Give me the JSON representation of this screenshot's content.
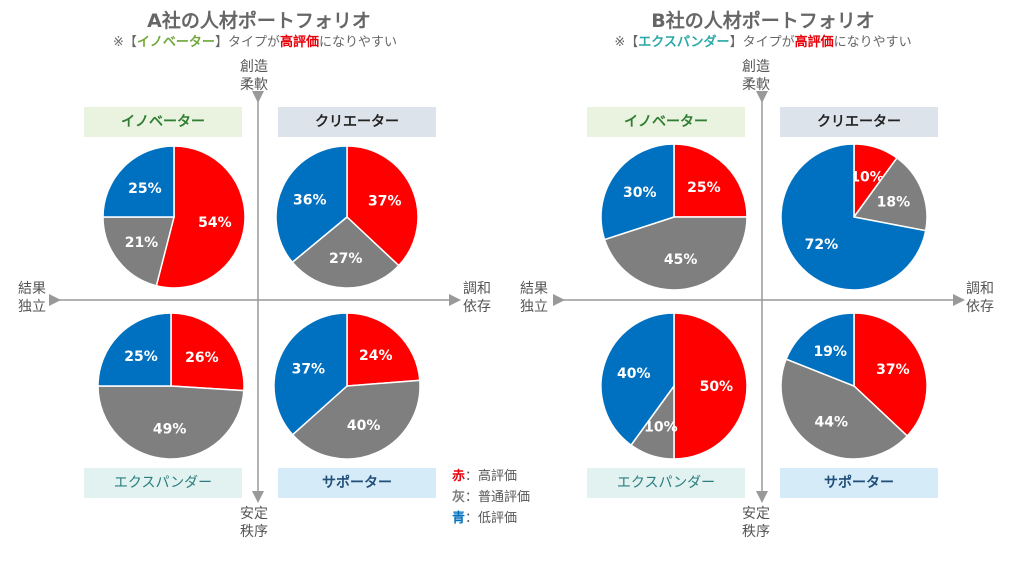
{
  "colors": {
    "red": "#ff0000",
    "gray": "#7f7f7f",
    "blue": "#0070c0"
  },
  "panels": [
    {
      "title": "A社の人材ポートフォリオ",
      "subtitle_parts": [
        "※【",
        "イノベーター",
        "】タイプが",
        "高評価",
        "になりやすい"
      ],
      "axis": {
        "top": [
          "創造",
          "柔軟"
        ],
        "bottom": [
          "安定",
          "秩序"
        ],
        "left": [
          "結果",
          "独立"
        ],
        "right": [
          "調和",
          "依存"
        ]
      },
      "quadrants": {
        "top_left": "イノベーター",
        "top_right": "クリエーター",
        "bottom_left": "エクスパンダー",
        "bottom_right": "サポーター"
      }
    },
    {
      "title": "B社の人材ポートフォリオ",
      "subtitle_parts": [
        "※【",
        "エクスパンダー",
        "】タイプが",
        "高評価",
        "になりやすい"
      ],
      "axis": {
        "top": [
          "創造",
          "柔軟"
        ],
        "bottom": [
          "安定",
          "秩序"
        ],
        "left": [
          "結果",
          "独立"
        ],
        "right": [
          "調和",
          "依存"
        ]
      },
      "quadrants": {
        "top_left": "イノベーター",
        "top_right": "クリエーター",
        "bottom_left": "エクスパンダー",
        "bottom_right": "サポーター"
      }
    }
  ],
  "legend": [
    {
      "key": "赤",
      "sep": "：",
      "text": "高評価",
      "color": "#e8000b"
    },
    {
      "key": "灰",
      "sep": "：",
      "text": "普通評価",
      "color": "#7f7f7f"
    },
    {
      "key": "青",
      "sep": "：",
      "text": "低評価",
      "color": "#0070c0"
    }
  ],
  "chart_data": [
    {
      "type": "pie",
      "company": "A",
      "quadrant": "イノベーター",
      "categories": [
        "高評価",
        "普通評価",
        "低評価"
      ],
      "values": [
        54,
        21,
        25
      ],
      "labels": [
        "54%",
        "21%",
        "25%"
      ]
    },
    {
      "type": "pie",
      "company": "A",
      "quadrant": "クリエーター",
      "categories": [
        "高評価",
        "普通評価",
        "低評価"
      ],
      "values": [
        37,
        27,
        36
      ],
      "labels": [
        "37%",
        "27%",
        "36%"
      ]
    },
    {
      "type": "pie",
      "company": "A",
      "quadrant": "エクスパンダー",
      "categories": [
        "高評価",
        "普通評価",
        "低評価"
      ],
      "values": [
        26,
        49,
        25
      ],
      "labels": [
        "26%",
        "49%",
        "25%"
      ]
    },
    {
      "type": "pie",
      "company": "A",
      "quadrant": "サポーター",
      "categories": [
        "高評価",
        "普通評価",
        "低評価"
      ],
      "values": [
        24,
        40,
        37
      ],
      "labels": [
        "24%",
        "40%",
        "37%"
      ]
    },
    {
      "type": "pie",
      "company": "B",
      "quadrant": "イノベーター",
      "categories": [
        "高評価",
        "普通評価",
        "低評価"
      ],
      "values": [
        25,
        45,
        30
      ],
      "labels": [
        "25%",
        "45%",
        "30%"
      ]
    },
    {
      "type": "pie",
      "company": "B",
      "quadrant": "クリエーター",
      "categories": [
        "高評価",
        "普通評価",
        "低評価"
      ],
      "values": [
        10,
        18,
        72
      ],
      "labels": [
        "10%",
        "18%",
        "72%"
      ]
    },
    {
      "type": "pie",
      "company": "B",
      "quadrant": "エクスパンダー",
      "categories": [
        "高評価",
        "普通評価",
        "低評価"
      ],
      "values": [
        50,
        10,
        40
      ],
      "labels": [
        "50%",
        "10%",
        "40%"
      ]
    },
    {
      "type": "pie",
      "company": "B",
      "quadrant": "サポーター",
      "categories": [
        "高評価",
        "普通評価",
        "低評価"
      ],
      "values": [
        37,
        44,
        19
      ],
      "labels": [
        "37%",
        "44%",
        "19%"
      ]
    }
  ]
}
